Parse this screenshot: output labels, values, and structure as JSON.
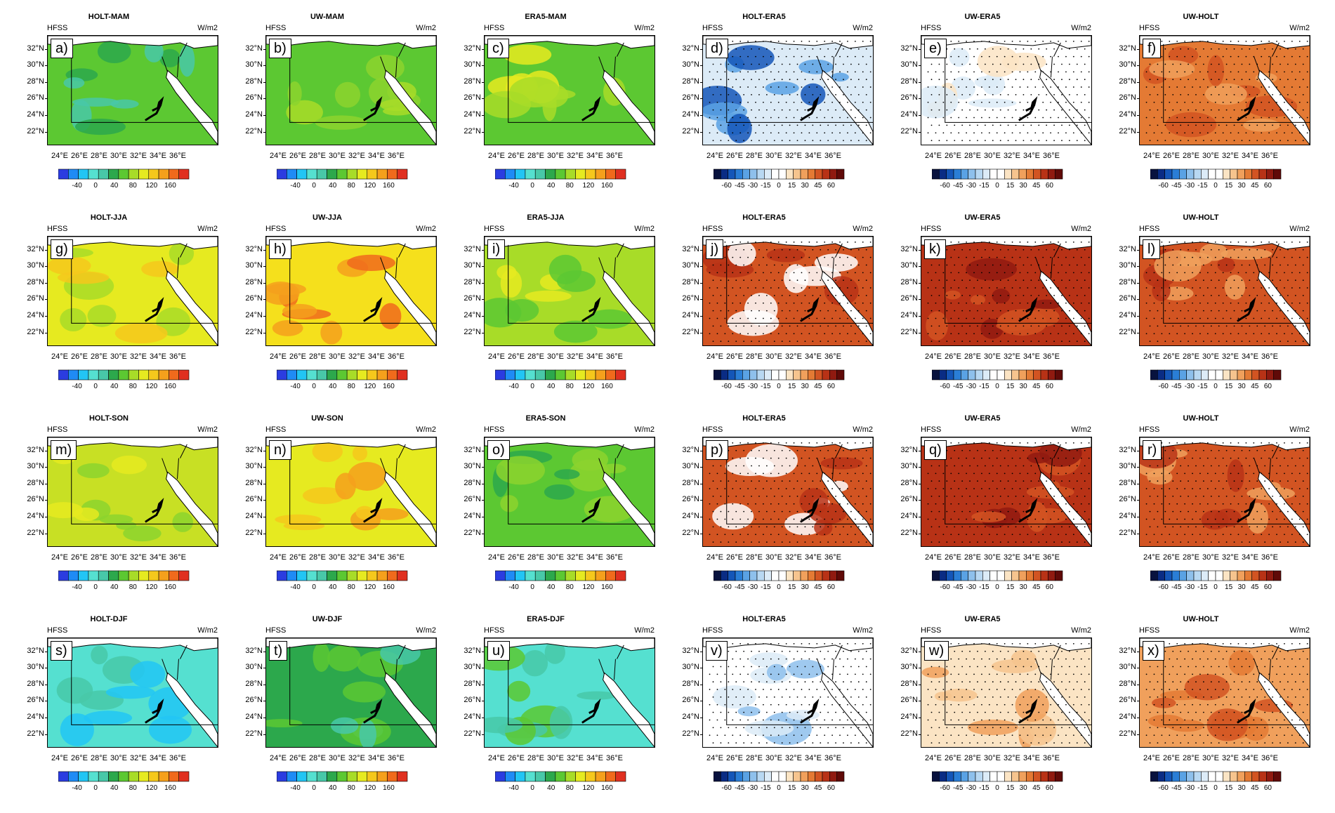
{
  "figure": {
    "variable_label": "HFSS",
    "unit_label": "W/m2",
    "lat_labels": [
      "32°N",
      "30°N",
      "28°N",
      "26°N",
      "24°N",
      "22°N"
    ],
    "lon_labels": [
      "24°E",
      "26°E",
      "28°E",
      "30°E",
      "32°E",
      "34°E",
      "36°E"
    ]
  },
  "colorbars": {
    "absolute": {
      "labels": [
        "-40",
        "0",
        "40",
        "80",
        "120",
        "160"
      ],
      "colors": [
        "#2b3ce0",
        "#1f8bf5",
        "#22c5f4",
        "#55e0d0",
        "#48c8a8",
        "#2ca84c",
        "#5cc832",
        "#a8dc28",
        "#e6ea20",
        "#f5c81c",
        "#f5a01c",
        "#f06a1c",
        "#e03020"
      ]
    },
    "difference": {
      "labels": [
        "-60",
        "-45",
        "-30",
        "-15",
        "0",
        "15",
        "30",
        "45",
        "60"
      ],
      "colors": [
        "#08123e",
        "#0a2c84",
        "#1456b8",
        "#2a7ed6",
        "#5aa2e4",
        "#8ec0ec",
        "#b8d8f2",
        "#dcebf7",
        "#ffffff",
        "#ffffff",
        "#fbe4c4",
        "#f6c48e",
        "#f0a05c",
        "#e47a34",
        "#d25422",
        "#b83216",
        "#901a10",
        "#600a08"
      ]
    }
  },
  "rows": [
    {
      "panels": [
        {
          "title": "HOLT-MAM",
          "letter": "a)",
          "scale": "absolute",
          "fill": "#5cc832",
          "patches": "#48c8a8",
          "accent": "#2ca84c",
          "stipple": false
        },
        {
          "title": "UW-MAM",
          "letter": "b)",
          "scale": "absolute",
          "fill": "#5cc832",
          "patches": "#8cd42e",
          "accent": "#a8dc28",
          "stipple": false
        },
        {
          "title": "ERA5-MAM",
          "letter": "c)",
          "scale": "absolute",
          "fill": "#5cc832",
          "patches": "#a8dc28",
          "accent": "#e6ea20",
          "stipple": false
        },
        {
          "title": "HOLT-ERA5",
          "letter": "d)",
          "scale": "difference",
          "fill": "#dcebf7",
          "patches": "#5aa2e4",
          "accent": "#1456b8",
          "stipple": true
        },
        {
          "title": "UW-ERA5",
          "letter": "e)",
          "scale": "difference",
          "fill": "#ffffff",
          "patches": "#dcebf7",
          "accent": "#fbe4c4",
          "stipple": true
        },
        {
          "title": "UW-HOLT",
          "letter": "f)",
          "scale": "difference",
          "fill": "#e47a34",
          "patches": "#d25422",
          "accent": "#f0a05c",
          "stipple": true
        }
      ]
    },
    {
      "panels": [
        {
          "title": "HOLT-JJA",
          "letter": "g)",
          "scale": "absolute",
          "fill": "#e6ea20",
          "patches": "#a8dc28",
          "accent": "#f5c81c",
          "stipple": false
        },
        {
          "title": "UW-JJA",
          "letter": "h)",
          "scale": "absolute",
          "fill": "#f5e01c",
          "patches": "#f5a01c",
          "accent": "#f06a1c",
          "stipple": false
        },
        {
          "title": "ERA5-JJA",
          "letter": "i)",
          "scale": "absolute",
          "fill": "#a8dc28",
          "patches": "#5cc832",
          "accent": "#e6ea20",
          "stipple": false
        },
        {
          "title": "HOLT-ERA5",
          "letter": "j)",
          "scale": "difference",
          "fill": "#d25422",
          "patches": "#ffffff",
          "accent": "#b83216",
          "stipple": true
        },
        {
          "title": "UW-ERA5",
          "letter": "k)",
          "scale": "difference",
          "fill": "#b83216",
          "patches": "#d25422",
          "accent": "#901a10",
          "stipple": true
        },
        {
          "title": "UW-HOLT",
          "letter": "l)",
          "scale": "difference",
          "fill": "#d25422",
          "patches": "#f0a05c",
          "accent": "#b83216",
          "stipple": true
        }
      ]
    },
    {
      "panels": [
        {
          "title": "HOLT-SON",
          "letter": "m)",
          "scale": "absolute",
          "fill": "#c8e024",
          "patches": "#8cd42e",
          "accent": "#e6ea20",
          "stipple": false
        },
        {
          "title": "UW-SON",
          "letter": "n)",
          "scale": "absolute",
          "fill": "#e6ea20",
          "patches": "#f5c81c",
          "accent": "#f5a01c",
          "stipple": false
        },
        {
          "title": "ERA5-SON",
          "letter": "o)",
          "scale": "absolute",
          "fill": "#5cc832",
          "patches": "#8cd42e",
          "accent": "#2ca84c",
          "stipple": false
        },
        {
          "title": "HOLT-ERA5",
          "letter": "p)",
          "scale": "difference",
          "fill": "#d25422",
          "patches": "#ffffff",
          "accent": "#b83216",
          "stipple": true
        },
        {
          "title": "UW-ERA5",
          "letter": "q)",
          "scale": "difference",
          "fill": "#b83216",
          "patches": "#d25422",
          "accent": "#901a10",
          "stipple": true
        },
        {
          "title": "UW-HOLT",
          "letter": "r)",
          "scale": "difference",
          "fill": "#d25422",
          "patches": "#f0a05c",
          "accent": "#b83216",
          "stipple": true
        }
      ]
    },
    {
      "panels": [
        {
          "title": "HOLT-DJF",
          "letter": "s)",
          "scale": "absolute",
          "fill": "#55e0d0",
          "patches": "#22c5f4",
          "accent": "#48c8a8",
          "stipple": false
        },
        {
          "title": "UW-DJF",
          "letter": "t)",
          "scale": "absolute",
          "fill": "#2ca84c",
          "patches": "#5cc832",
          "accent": "#48c8a8",
          "stipple": false
        },
        {
          "title": "ERA5-DJF",
          "letter": "u)",
          "scale": "absolute",
          "fill": "#55e0d0",
          "patches": "#48c8a8",
          "accent": "#5cc832",
          "stipple": false
        },
        {
          "title": "HOLT-ERA5",
          "letter": "v)",
          "scale": "difference",
          "fill": "#ffffff",
          "patches": "#dcebf7",
          "accent": "#8ec0ec",
          "stipple": true
        },
        {
          "title": "UW-ERA5",
          "letter": "w)",
          "scale": "difference",
          "fill": "#fbe4c4",
          "patches": "#f6c48e",
          "accent": "#f0a05c",
          "stipple": true
        },
        {
          "title": "UW-HOLT",
          "letter": "x)",
          "scale": "difference",
          "fill": "#f0a05c",
          "patches": "#e47a34",
          "accent": "#d25422",
          "stipple": true
        }
      ]
    }
  ]
}
